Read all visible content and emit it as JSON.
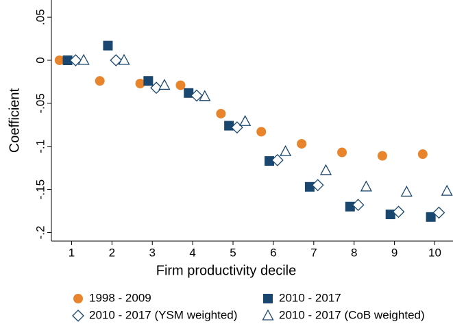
{
  "chart_data": {
    "type": "scatter",
    "x_label": "Firm productivity decile",
    "y_label": "Coefficient",
    "xlim": [
      0.5,
      10.45
    ],
    "ylim": [
      -0.21,
      0.07
    ],
    "xticks": [
      1,
      2,
      3,
      4,
      5,
      6,
      7,
      8,
      9,
      10
    ],
    "yticks": [
      {
        "value": 0.05,
        "label": ".05"
      },
      0,
      {
        "value": -0.05,
        "label": "-.05"
      },
      {
        "value": -0.1,
        "label": "-.1"
      },
      {
        "value": -0.15,
        "label": "-.15"
      },
      {
        "value": -0.2,
        "label": "-.2"
      }
    ],
    "grid": false,
    "legend": "bottom",
    "series": [
      {
        "name": "1998 - 2009",
        "color": "#e8842c",
        "marker": "circle",
        "x": [
          0.7,
          1.7,
          2.7,
          3.7,
          4.7,
          5.7,
          6.7,
          7.7,
          8.7,
          9.7
        ],
        "values": [
          0,
          -0.024,
          -0.027,
          -0.029,
          -0.062,
          -0.083,
          -0.097,
          -0.107,
          -0.111,
          -0.109
        ]
      },
      {
        "name": "2010 - 2017",
        "color": "#1a476f",
        "marker": "square",
        "x": [
          0.9,
          1.9,
          2.9,
          3.9,
          4.9,
          5.9,
          6.9,
          7.9,
          8.9,
          9.9
        ],
        "values": [
          0,
          0.017,
          -0.024,
          -0.038,
          -0.076,
          -0.117,
          -0.147,
          -0.17,
          -0.179,
          -0.182
        ]
      },
      {
        "name": "2010 - 2017 (YSM weighted)",
        "color": "#1a476f",
        "marker": "diamond",
        "x": [
          1.1,
          2.1,
          3.1,
          4.1,
          5.1,
          6.1,
          7.1,
          8.1,
          9.1,
          10.1
        ],
        "values": [
          0,
          0,
          -0.032,
          -0.041,
          -0.078,
          -0.116,
          -0.145,
          -0.168,
          -0.176,
          -0.177
        ]
      },
      {
        "name": "2010 - 2017 (CoB weighted)",
        "color": "#1a476f",
        "marker": "triangle",
        "x": [
          1.3,
          2.3,
          3.3,
          4.3,
          5.3,
          6.3,
          7.3,
          8.3,
          9.3,
          10.3
        ],
        "values": [
          0,
          0,
          -0.029,
          -0.042,
          -0.071,
          -0.106,
          -0.128,
          -0.147,
          -0.153,
          -0.152
        ]
      }
    ]
  }
}
